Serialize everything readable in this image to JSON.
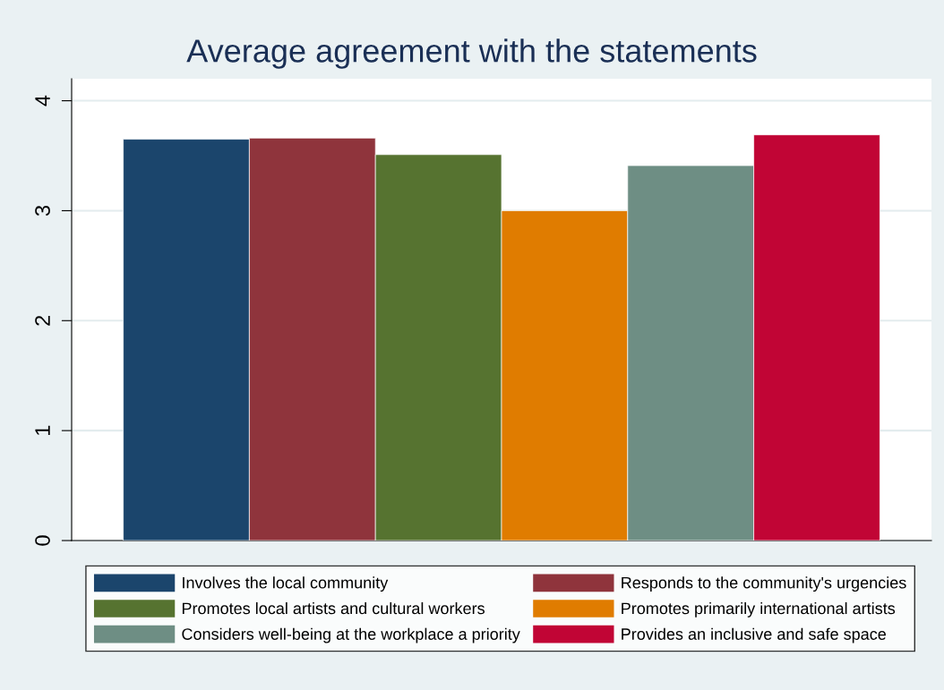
{
  "chart_data": {
    "type": "bar",
    "title": "Average agreement with the statements",
    "categories": [
      null
    ],
    "series": [
      {
        "name": "Involves the local community",
        "color": "#1b456c",
        "values": [
          3.65
        ]
      },
      {
        "name": "Responds to the community's urgencies",
        "color": "#8f343c",
        "values": [
          3.66
        ]
      },
      {
        "name": "Promotes local artists and cultural workers",
        "color": "#567330",
        "values": [
          3.51
        ]
      },
      {
        "name": "Promotes primarily international artists",
        "color": "#e07c00",
        "values": [
          3.0
        ]
      },
      {
        "name": "Considers well-being at the workplace a priority",
        "color": "#6e8e84",
        "values": [
          3.41
        ]
      },
      {
        "name": "Provides an inclusive and safe space",
        "color": "#c10535",
        "values": [
          3.69
        ]
      }
    ],
    "ylim": [
      0,
      4.2
    ],
    "yticks": [
      0,
      1,
      2,
      3,
      4
    ],
    "grid": "y",
    "legend": "bottom"
  }
}
